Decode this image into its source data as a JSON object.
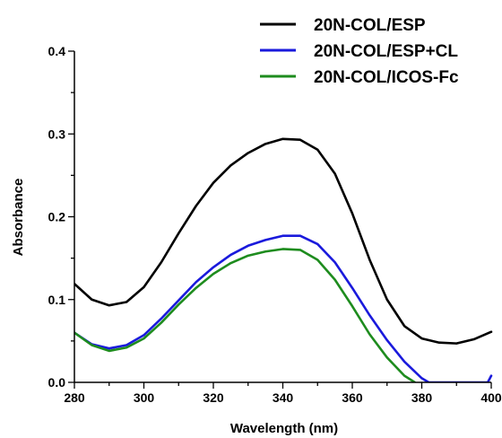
{
  "chart_data": {
    "type": "line",
    "xlabel": "Wavelength (nm)",
    "ylabel": "Absorbance",
    "xlim": [
      280,
      400
    ],
    "ylim": [
      0,
      0.4
    ],
    "x_ticks": [
      280,
      300,
      320,
      340,
      360,
      380,
      400
    ],
    "y_ticks": [
      "0.0",
      "0.1",
      "0.2",
      "0.3",
      "0.4"
    ],
    "grid": false,
    "legend": "top-right",
    "series": [
      {
        "name": "20N-COL/ESP",
        "color": "#000000",
        "points": [
          [
            280,
            0.119
          ],
          [
            285,
            0.1
          ],
          [
            290,
            0.093
          ],
          [
            295,
            0.097
          ],
          [
            300,
            0.115
          ],
          [
            305,
            0.145
          ],
          [
            310,
            0.18
          ],
          [
            315,
            0.213
          ],
          [
            320,
            0.241
          ],
          [
            325,
            0.262
          ],
          [
            330,
            0.277
          ],
          [
            335,
            0.288
          ],
          [
            340,
            0.294
          ],
          [
            345,
            0.293
          ],
          [
            350,
            0.281
          ],
          [
            355,
            0.252
          ],
          [
            360,
            0.204
          ],
          [
            365,
            0.148
          ],
          [
            370,
            0.1
          ],
          [
            375,
            0.068
          ],
          [
            380,
            0.053
          ],
          [
            385,
            0.048
          ],
          [
            390,
            0.047
          ],
          [
            395,
            0.052
          ],
          [
            400,
            0.061
          ]
        ]
      },
      {
        "name": "20N-COL/ESP+CL",
        "color": "#1a1adc",
        "points": [
          [
            280,
            0.06
          ],
          [
            285,
            0.046
          ],
          [
            290,
            0.041
          ],
          [
            295,
            0.045
          ],
          [
            300,
            0.057
          ],
          [
            305,
            0.077
          ],
          [
            310,
            0.099
          ],
          [
            315,
            0.121
          ],
          [
            320,
            0.139
          ],
          [
            325,
            0.154
          ],
          [
            330,
            0.165
          ],
          [
            335,
            0.172
          ],
          [
            340,
            0.177
          ],
          [
            345,
            0.177
          ],
          [
            350,
            0.167
          ],
          [
            355,
            0.145
          ],
          [
            360,
            0.114
          ],
          [
            365,
            0.081
          ],
          [
            370,
            0.051
          ],
          [
            375,
            0.025
          ],
          [
            380,
            0.005
          ],
          [
            382,
            0.0
          ],
          [
            399,
            0.0
          ],
          [
            400,
            0.008
          ]
        ]
      },
      {
        "name": "20N-COL/ICOS-Fc",
        "color": "#1e8c1e",
        "points": [
          [
            280,
            0.06
          ],
          [
            285,
            0.045
          ],
          [
            290,
            0.038
          ],
          [
            295,
            0.042
          ],
          [
            300,
            0.053
          ],
          [
            305,
            0.072
          ],
          [
            310,
            0.094
          ],
          [
            315,
            0.114
          ],
          [
            320,
            0.131
          ],
          [
            325,
            0.144
          ],
          [
            330,
            0.153
          ],
          [
            335,
            0.158
          ],
          [
            340,
            0.161
          ],
          [
            345,
            0.16
          ],
          [
            350,
            0.148
          ],
          [
            355,
            0.124
          ],
          [
            360,
            0.092
          ],
          [
            365,
            0.058
          ],
          [
            370,
            0.03
          ],
          [
            375,
            0.008
          ],
          [
            378,
            0.0
          ]
        ]
      }
    ]
  }
}
